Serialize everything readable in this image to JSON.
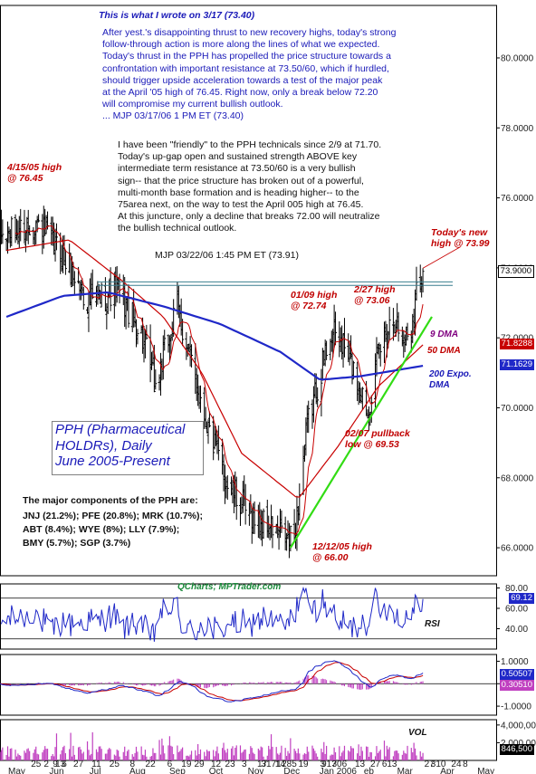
{
  "note1": {
    "heading": "This is what I wrote on 3/17 (73.40)",
    "lines": [
      "After yest.'s disappointing thrust to new recovery highs, today's strong",
      "follow-through action is more along the lines of what we expected.",
      "Today's thrust in the PPH has propelled the price structure towards a",
      "confrontation with important resistance at 73.50/60, which if hurdled,",
      "should trigger upside acceleration towards a test of the major peak",
      "at the April '05 high of 76.45. Right now, only a break below 72.20",
      "will compromise my current bullish outlook.",
      "... MJP 03/17/06 1 PM ET (73.40)"
    ]
  },
  "note2": {
    "lines": [
      "I have been \"friendly\" to the PPH technicals since 2/9 at 71.70.",
      "Today's up-gap open and sustained strength ABOVE key",
      "intermediate term resistance at 73.50/60 is a very bullish",
      "sign-- that the price structure has broken out of a powerful,",
      "multi-month base formation and is heading higher-- to the",
      "75area next, on the way to test the April 005 high at 76.45.",
      "At this juncture, only a decline that breaks 72.00 will neutralize",
      "the bullish technical outlook.",
      "MJP  03/22/06  1:45 PM ET  (73.91)"
    ]
  },
  "chart_title": [
    "PPH (Pharmaceutical",
    "HOLDRs), Daily",
    "June 2005-Present"
  ],
  "components": {
    "heading": "The major components of the PPH are:",
    "lines": [
      "JNJ (21.2%); PFE (20.8%); MRK (10.7%);",
      "ABT (8.4%); WYE (8%);  LLY (7.9%);",
      "BMY (5.7%); SGP (3.7%)"
    ]
  },
  "labels": {
    "high_0415": [
      "4/15/05 high",
      "@ 76.45"
    ],
    "high_0109": [
      "01/09 high",
      "@ 72.74"
    ],
    "high_0227": [
      "2/27 high",
      "@ 73.06"
    ],
    "todays_high": [
      "Today's new",
      "high @ 73.99"
    ],
    "pullback_0207": [
      "02/07 pullback",
      "low @ 69.53"
    ],
    "low_1212": [
      "12/12/05 high",
      "@ 66.00"
    ],
    "ma9": "9 DMA",
    "ma50": "50 DMA",
    "ema200": [
      "200 Expo.",
      "DMA"
    ],
    "rsi": "RSI",
    "vol": "VOL",
    "watermark": "QCharts; MPTrader.com"
  },
  "chart_data": {
    "type": "line",
    "price_axis": {
      "ticks": [
        66.0,
        68.0,
        70.0,
        72.0,
        74.0,
        76.0,
        78.0,
        80.0
      ],
      "tick_labels": [
        "66.0000",
        "68.0000",
        "70.0000",
        "72.0000",
        "74.0000",
        "76.0000",
        "78.0000",
        "80.0000"
      ],
      "ylim": [
        65.2,
        81.5
      ]
    },
    "price_tags": {
      "last": "73.9000",
      "ma50": "71.8288",
      "ema200": "71.1629"
    },
    "close_anchors": [
      [
        "2005-05-02",
        74.9
      ],
      [
        "2005-05-25",
        75.3
      ],
      [
        "2005-06-14",
        74.4
      ],
      [
        "2005-07-05",
        73.0
      ],
      [
        "2005-07-27",
        73.4
      ],
      [
        "2005-08-15",
        72.1
      ],
      [
        "2005-08-26",
        70.6
      ],
      [
        "2005-09-12",
        72.9
      ],
      [
        "2005-09-22",
        71.4
      ],
      [
        "2005-10-07",
        69.3
      ],
      [
        "2005-10-21",
        67.8
      ],
      [
        "2005-11-07",
        66.9
      ],
      [
        "2005-11-22",
        66.6
      ],
      [
        "2005-12-08",
        66.2
      ],
      [
        "2005-12-12",
        66.3
      ],
      [
        "2005-12-22",
        69.5
      ],
      [
        "2006-01-04",
        71.4
      ],
      [
        "2006-01-09",
        72.2
      ],
      [
        "2006-01-20",
        71.7
      ],
      [
        "2006-02-01",
        70.6
      ],
      [
        "2006-02-07",
        69.9
      ],
      [
        "2006-02-15",
        71.5
      ],
      [
        "2006-02-27",
        72.7
      ],
      [
        "2006-03-06",
        71.9
      ],
      [
        "2006-03-13",
        72.3
      ],
      [
        "2006-03-17",
        73.4
      ],
      [
        "2006-03-22",
        73.9
      ]
    ],
    "highlights": [
      {
        "date": "2005-04-15",
        "value": 76.45
      },
      {
        "date": "2006-01-09",
        "value": 72.74
      },
      {
        "date": "2006-02-27",
        "value": 73.06
      },
      {
        "date": "2006-03-22",
        "value": 73.99
      },
      {
        "date": "2006-02-07",
        "value": 69.53
      },
      {
        "date": "2005-12-12",
        "value": 66.0
      }
    ],
    "resistance": [
      73.5,
      73.6
    ],
    "trendline": [
      [
        "2005-12-09",
        66.0
      ],
      [
        "2006-03-29",
        72.6
      ]
    ],
    "ma50_anchors": [
      [
        "2005-05-02",
        74.5
      ],
      [
        "2005-06-20",
        74.8
      ],
      [
        "2005-08-01",
        73.6
      ],
      [
        "2005-09-01",
        72.6
      ],
      [
        "2005-10-01",
        71.0
      ],
      [
        "2005-11-01",
        68.7
      ],
      [
        "2005-12-15",
        67.4
      ],
      [
        "2006-01-15",
        68.9
      ],
      [
        "2006-02-15",
        70.6
      ],
      [
        "2006-03-22",
        71.8
      ]
    ],
    "ema200_anchors": [
      [
        "2005-05-02",
        72.6
      ],
      [
        "2005-06-15",
        73.2
      ],
      [
        "2005-07-20",
        73.3
      ],
      [
        "2005-09-01",
        72.9
      ],
      [
        "2005-10-15",
        72.4
      ],
      [
        "2005-12-01",
        71.6
      ],
      [
        "2006-01-01",
        70.8
      ],
      [
        "2006-02-01",
        70.9
      ],
      [
        "2006-03-22",
        71.2
      ]
    ],
    "rsi_axis": {
      "ticks": [
        40,
        60,
        80
      ],
      "tick_labels": [
        "40.00",
        "60.00",
        "80.00"
      ],
      "ylim": [
        20,
        84
      ],
      "last_label": "69.12"
    },
    "macd_axis": {
      "ticks": [
        -1.0,
        0.0,
        1.0
      ],
      "tick_labels": [
        "-1.0000",
        "0.0000",
        "1.0000"
      ],
      "ylim": [
        -1.4,
        1.3
      ],
      "tags": [
        "0.50507",
        "0.30510"
      ]
    },
    "volume_axis": {
      "ticks": [
        0,
        2000000,
        4000000
      ],
      "tick_labels": [
        "0",
        "2,000,000",
        "4,000,000"
      ],
      "ylim": [
        0,
        4600000
      ],
      "last_label": "846,500"
    },
    "x_axis": {
      "day_ticks": [
        {
          "date": "2005-05-25",
          "label": "25"
        },
        {
          "date": "2005-06-02",
          "label": "2"
        },
        {
          "date": "2005-06-09",
          "label": "9"
        },
        {
          "date": "2005-06-16",
          "label": "6"
        },
        {
          "date": "2005-06-13",
          "label": "13"
        },
        {
          "date": "2005-06-27",
          "label": "27"
        },
        {
          "date": "2005-07-11",
          "label": "11"
        },
        {
          "date": "2005-07-25",
          "label": "25"
        },
        {
          "date": "2005-08-08",
          "label": "8"
        },
        {
          "date": "2005-08-22",
          "label": "22"
        },
        {
          "date": "2005-09-06",
          "label": "6"
        },
        {
          "date": "2005-09-19",
          "label": "19"
        },
        {
          "date": "2005-09-29",
          "label": "29"
        },
        {
          "date": "2005-10-12",
          "label": "12"
        },
        {
          "date": "2005-10-23",
          "label": "23"
        },
        {
          "date": "2005-11-03",
          "label": "3"
        },
        {
          "date": "2005-11-17",
          "label": "17"
        },
        {
          "date": "2005-11-24",
          "label": "3171"
        },
        {
          "date": "2005-12-01",
          "label": "14"
        },
        {
          "date": "2005-12-08",
          "label": "285"
        },
        {
          "date": "2005-12-19",
          "label": "19"
        },
        {
          "date": "2006-01-03",
          "label": "3"
        },
        {
          "date": "2006-01-08",
          "label": "917"
        },
        {
          "date": "2006-01-16",
          "label": "306"
        },
        {
          "date": "2006-02-01",
          "label": "13"
        },
        {
          "date": "2006-02-13",
          "label": "27"
        },
        {
          "date": "2006-02-24",
          "label": "613"
        },
        {
          "date": "2006-03-27",
          "label": "27"
        },
        {
          "date": "2006-04-03",
          "label": "310"
        },
        {
          "date": "2006-04-17",
          "label": "24"
        },
        {
          "date": "2006-04-24",
          "label": "8"
        }
      ],
      "month_labels": [
        {
          "date": "2005-05-10",
          "label": "May"
        },
        {
          "date": "2005-06-10",
          "label": "Jun"
        },
        {
          "date": "2005-07-10",
          "label": "Jul"
        },
        {
          "date": "2005-08-12",
          "label": "Aug"
        },
        {
          "date": "2005-09-12",
          "label": "Sep"
        },
        {
          "date": "2005-10-12",
          "label": "Oct"
        },
        {
          "date": "2005-11-12",
          "label": "Nov"
        },
        {
          "date": "2005-12-10",
          "label": "Dec"
        },
        {
          "date": "2006-01-15",
          "label": "Jan 2006"
        },
        {
          "date": "2006-02-08",
          "label": "eb"
        },
        {
          "date": "2006-03-08",
          "label": "Mar"
        },
        {
          "date": "2006-04-10",
          "label": "Apr"
        },
        {
          "date": "2006-05-10",
          "label": "May"
        }
      ]
    }
  },
  "colors": {
    "price_bars": "#000000",
    "ma9": "#c80000",
    "ma50": "#c80000",
    "ema200": "#1f28c8",
    "trendline": "#32dc14",
    "resistance": "#3a7f8f",
    "rsi": "#1f28c8",
    "macd_line": "#1f28c8",
    "macd_signal": "#c80000",
    "macd_hist": "#c040c0",
    "volume": "#c040c0",
    "blue_text": "#1a1ab8",
    "red_text": "#c00000"
  }
}
